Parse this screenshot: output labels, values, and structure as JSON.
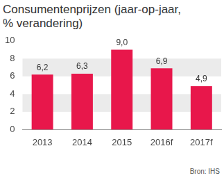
{
  "chart_data": {
    "type": "bar",
    "title": "Consumentenprijzen (jaar-op-jaar, % verandering)",
    "categories": [
      "2013",
      "2014",
      "2015",
      "2016f",
      "2017f"
    ],
    "values": [
      6.2,
      6.3,
      9.0,
      6.9,
      4.9
    ],
    "value_labels": [
      "6,2",
      "6,3",
      "9,0",
      "6,9",
      "4,9"
    ],
    "color": "#e8174b",
    "ylim": [
      0,
      10
    ],
    "yticks": [
      0,
      2,
      4,
      6,
      8,
      10
    ],
    "grid": true,
    "data_labels": true,
    "annotations": [
      "Bron: IHS"
    ]
  }
}
